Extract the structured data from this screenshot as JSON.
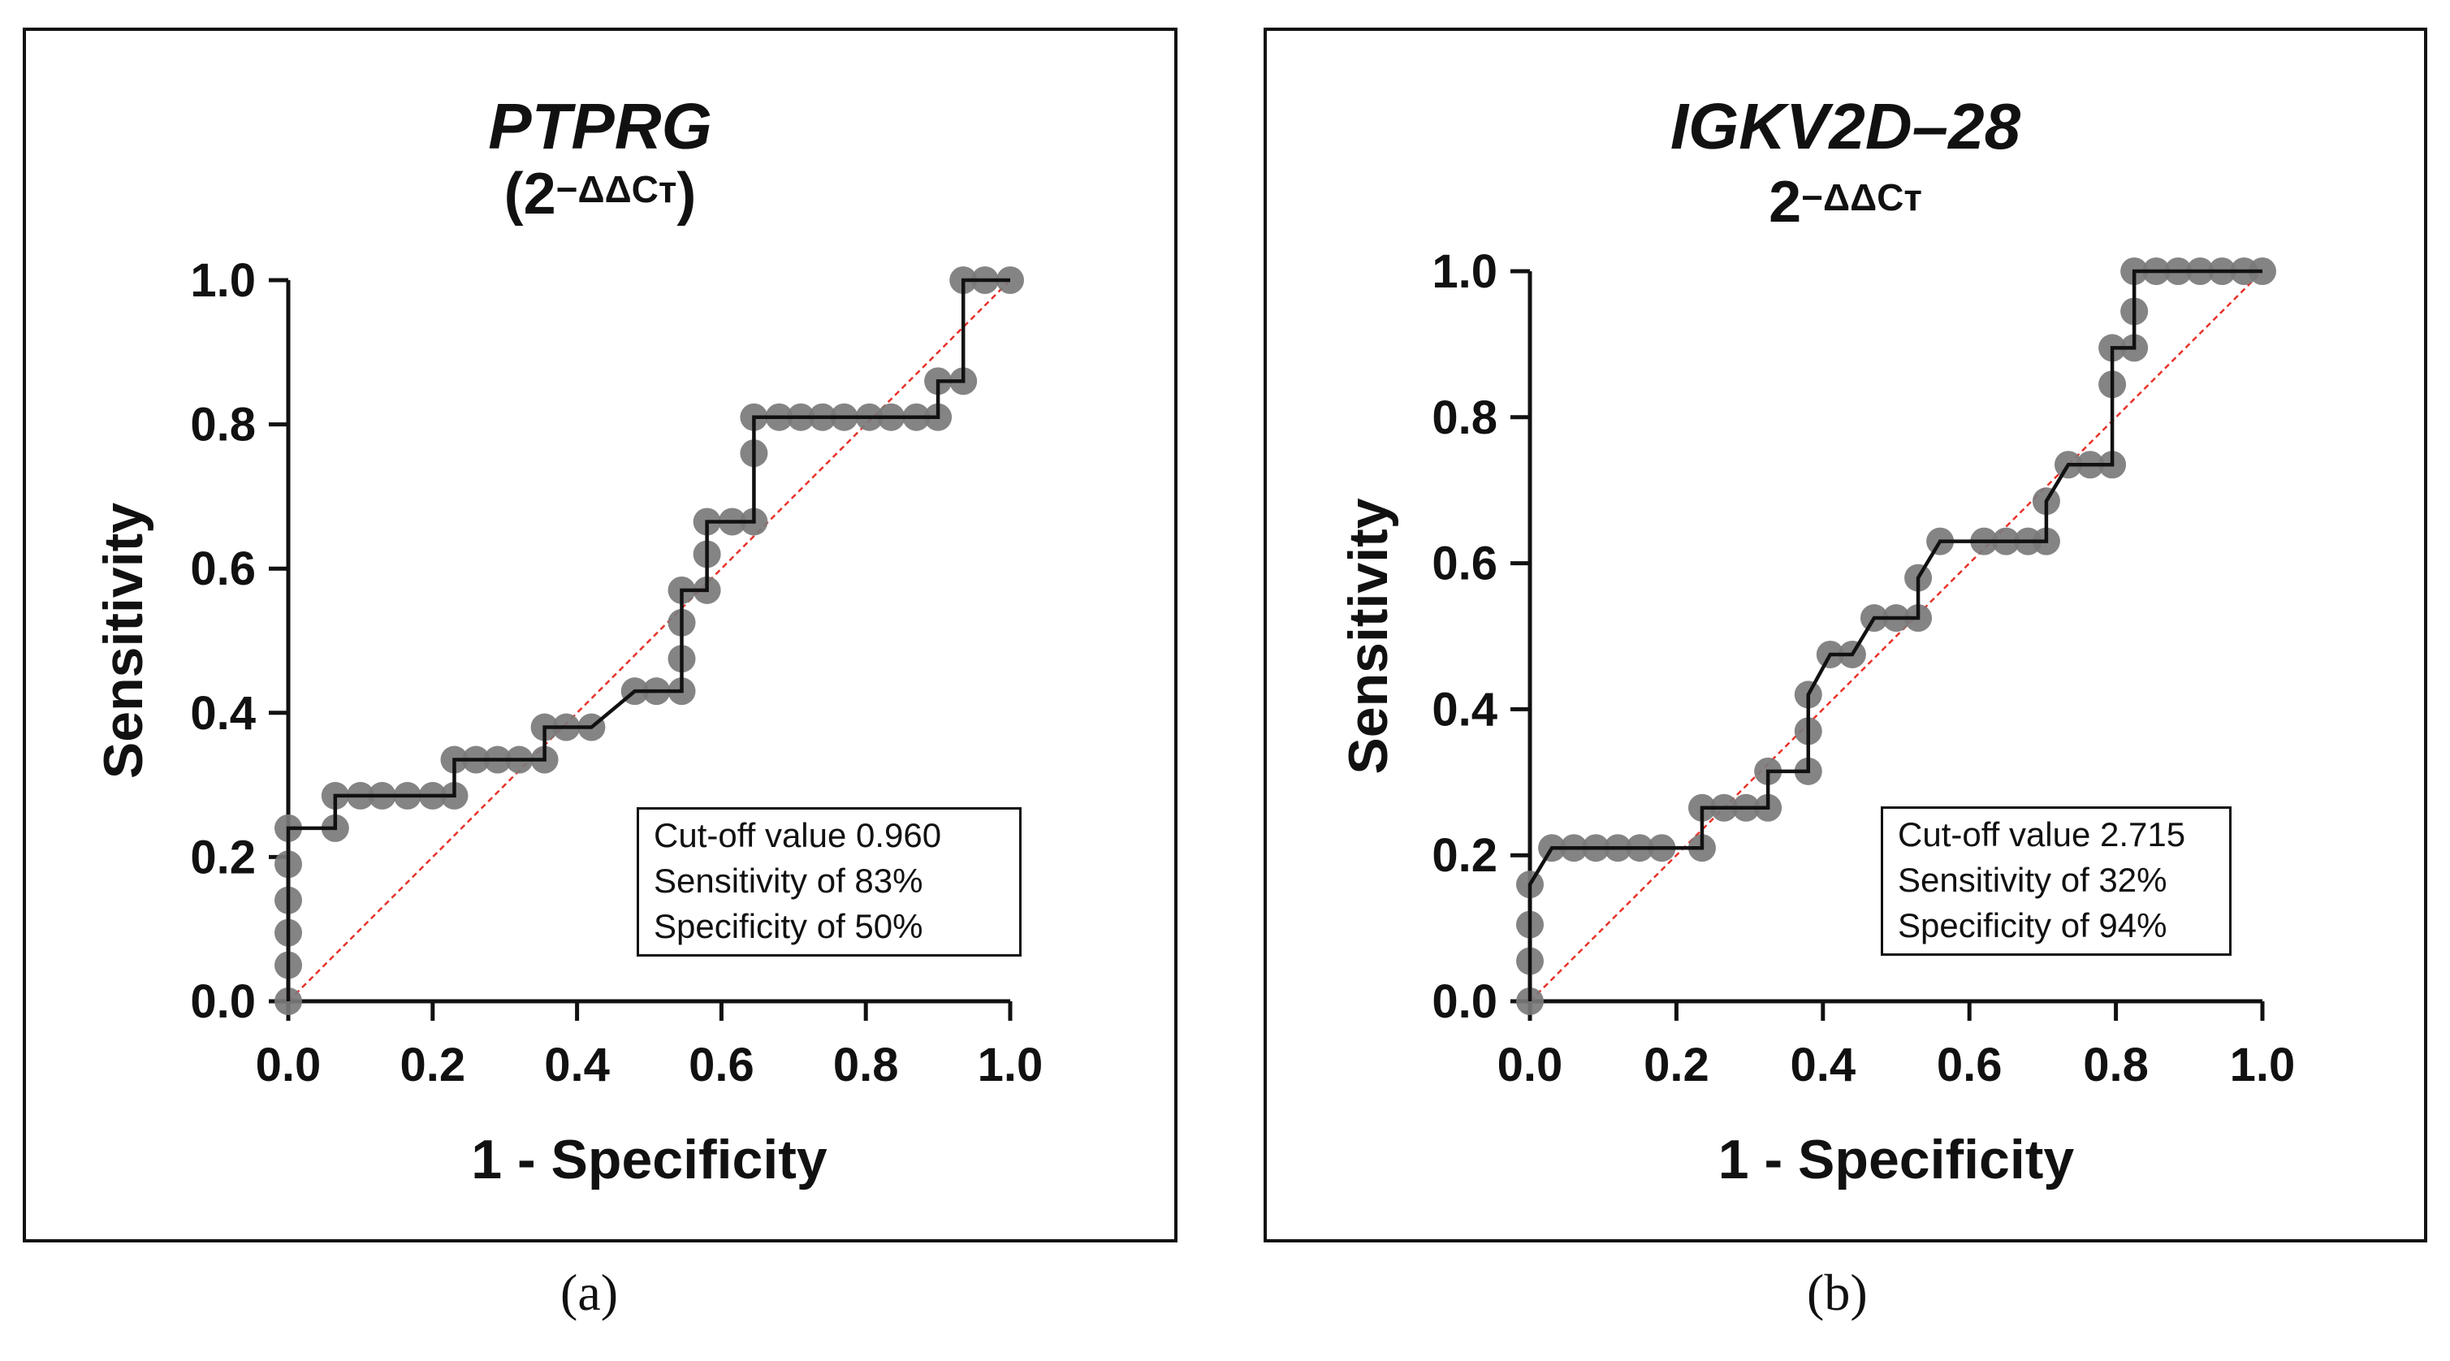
{
  "chart_data": [
    {
      "type": "line",
      "marker": "circle",
      "title": "PTPRG",
      "subtitle_base": "(2",
      "subtitle_exp": "−ΔΔCт",
      "subtitle_close": ")",
      "xlabel": "1 - Specificity",
      "ylabel": "Sensitivity",
      "xlim": [
        0,
        1
      ],
      "ylim": [
        0,
        1
      ],
      "xticks": [
        "0.0",
        "0.2",
        "0.4",
        "0.6",
        "0.8",
        "1.0"
      ],
      "yticks": [
        "0.0",
        "0.2",
        "0.4",
        "0.6",
        "0.8",
        "1.0"
      ],
      "reference_line": true,
      "x": [
        0,
        0,
        0,
        0,
        0,
        0,
        0.065,
        0.065,
        0.1,
        0.13,
        0.165,
        0.2,
        0.23,
        0.23,
        0.26,
        0.29,
        0.32,
        0.355,
        0.355,
        0.385,
        0.42,
        0.48,
        0.51,
        0.545,
        0.545,
        0.545,
        0.545,
        0.58,
        0.58,
        0.58,
        0.615,
        0.645,
        0.645,
        0.645,
        0.68,
        0.71,
        0.74,
        0.77,
        0.805,
        0.835,
        0.87,
        0.9,
        0.9,
        0.935,
        0.935,
        0.965,
        1.0
      ],
      "y": [
        0,
        0.05,
        0.095,
        0.14,
        0.19,
        0.24,
        0.24,
        0.285,
        0.285,
        0.285,
        0.285,
        0.285,
        0.285,
        0.335,
        0.335,
        0.335,
        0.335,
        0.335,
        0.38,
        0.38,
        0.38,
        0.43,
        0.43,
        0.43,
        0.475,
        0.525,
        0.57,
        0.57,
        0.62,
        0.665,
        0.665,
        0.665,
        0.76,
        0.81,
        0.81,
        0.81,
        0.81,
        0.81,
        0.81,
        0.81,
        0.81,
        0.81,
        0.86,
        0.86,
        1.0,
        1.0,
        1.0
      ],
      "annotation": [
        "Cut-off value 0.960",
        "Sensitivity of 83%",
        "Specificity of 50%"
      ],
      "caption": "(a)"
    },
    {
      "type": "line",
      "marker": "circle",
      "title": "IGKV2D–28",
      "subtitle_base": "2",
      "subtitle_exp": "−ΔΔCт",
      "subtitle_close": "",
      "xlabel": "1 - Specificity",
      "ylabel": "Sensitivity",
      "xlim": [
        0,
        1
      ],
      "ylim": [
        0,
        1
      ],
      "xticks": [
        "0.0",
        "0.2",
        "0.4",
        "0.6",
        "0.8",
        "1.0"
      ],
      "yticks": [
        "0.0",
        "0.2",
        "0.4",
        "0.6",
        "0.8",
        "1.0"
      ],
      "reference_line": true,
      "x": [
        0,
        0,
        0,
        0,
        0.03,
        0.06,
        0.09,
        0.12,
        0.15,
        0.18,
        0.235,
        0.235,
        0.265,
        0.295,
        0.325,
        0.325,
        0.38,
        0.38,
        0.38,
        0.41,
        0.44,
        0.47,
        0.5,
        0.53,
        0.53,
        0.56,
        0.62,
        0.65,
        0.68,
        0.705,
        0.705,
        0.735,
        0.765,
        0.795,
        0.795,
        0.795,
        0.825,
        0.825,
        0.825,
        0.855,
        0.885,
        0.915,
        0.945,
        0.975,
        1.0
      ],
      "y": [
        0,
        0.055,
        0.105,
        0.16,
        0.21,
        0.21,
        0.21,
        0.21,
        0.21,
        0.21,
        0.21,
        0.265,
        0.265,
        0.265,
        0.265,
        0.315,
        0.315,
        0.37,
        0.42,
        0.475,
        0.475,
        0.525,
        0.525,
        0.525,
        0.58,
        0.63,
        0.63,
        0.63,
        0.63,
        0.63,
        0.685,
        0.735,
        0.735,
        0.735,
        0.845,
        0.895,
        0.895,
        0.945,
        1.0,
        1.0,
        1.0,
        1.0,
        1.0,
        1.0,
        1.0
      ],
      "annotation": [
        "Cut-off value 2.715",
        "Sensitivity of 32%",
        "Specificity of 94%"
      ],
      "caption": "(b)"
    }
  ],
  "colors": {
    "marker": "#7a7a7a",
    "step_line": "#111111",
    "reference_line": "#e8322a",
    "axis": "#111111"
  }
}
